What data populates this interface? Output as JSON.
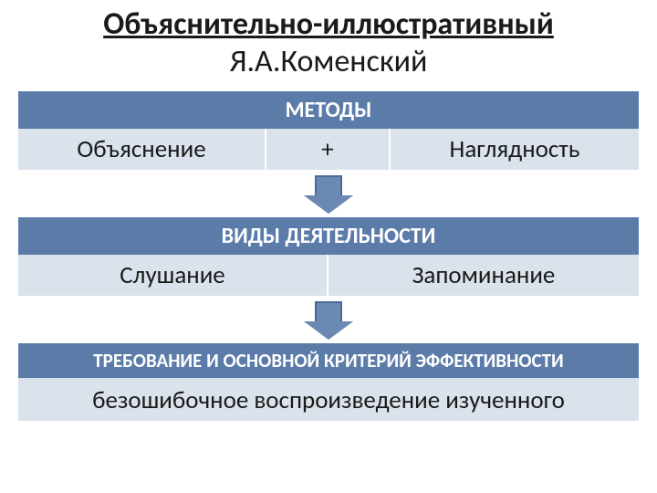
{
  "colors": {
    "header_bg": "#5b7ba8",
    "cell_bg": "#dae2ec",
    "arrow_fill": "#6b89b3",
    "arrow_border": "#4a6b98",
    "text_dark": "#1a1a1a",
    "text_light": "#ffffff",
    "page_bg": "#ffffff"
  },
  "title": {
    "line1": "Объяснительно-иллюстративный",
    "line2": "Я.А.Коменский",
    "fontsize_line1": 34,
    "fontsize_line2": 34
  },
  "block1": {
    "header": "МЕТОДЫ",
    "header_fontsize": 24,
    "cells": [
      {
        "label": "Объяснение",
        "width_pct": 40
      },
      {
        "label": "+",
        "width_pct": 20
      },
      {
        "label": "Наглядность",
        "width_pct": 40
      }
    ],
    "cell_fontsize": 27
  },
  "block2": {
    "header": "ВИДЫ ДЕЯТЕЛЬНОСТИ",
    "header_fontsize": 24,
    "cells": [
      {
        "label": "Слушание",
        "width_pct": 50
      },
      {
        "label": "Запоминание",
        "width_pct": 50
      }
    ],
    "cell_fontsize": 27
  },
  "block3": {
    "header": "ТРЕБОВАНИЕ И ОСНОВНОЙ КРИТЕРИЙ ЭФФЕКТИВНОСТИ",
    "header_fontsize": 21,
    "content": "безошибочное воспроизведение изученного",
    "content_fontsize": 27
  },
  "arrow": {
    "stem_w": 30,
    "stem_h": 22,
    "head_w": 54,
    "head_h": 20,
    "border_w": 2
  }
}
